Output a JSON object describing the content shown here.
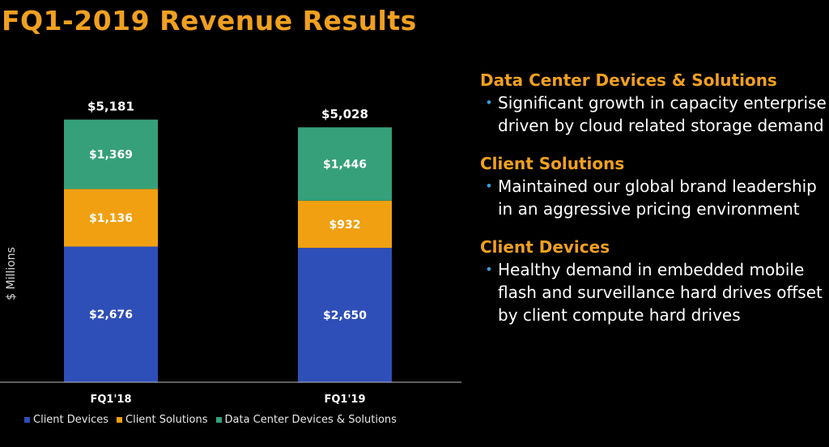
{
  "title": "FQ1-2019 Revenue Results",
  "chart_data": {
    "type": "bar",
    "stacked": true,
    "categories": [
      "FQ1'18",
      "FQ1'19"
    ],
    "ylabel": "$ Millions",
    "totals": [
      5181,
      5028
    ],
    "total_labels": [
      "$5,181",
      "$5,028"
    ],
    "series": [
      {
        "name": "Client Devices",
        "values": [
          2676,
          2650
        ],
        "labels": [
          "$2,676",
          "$2,650"
        ],
        "color": "#2f4fb8"
      },
      {
        "name": "Client Solutions",
        "values": [
          1136,
          932
        ],
        "labels": [
          "$1,136",
          "$932"
        ],
        "color": "#f0a010"
      },
      {
        "name": "Data Center Devices & Solutions",
        "values": [
          1369,
          1446
        ],
        "labels": [
          "$1,369",
          "$1,446"
        ],
        "color": "#35a07a"
      }
    ],
    "legend_position": "bottom",
    "grid": false
  },
  "commentary": [
    {
      "heading": "Data Center Devices & Solutions",
      "bullet": "Significant growth in capacity enterprise driven by cloud related storage demand"
    },
    {
      "heading": "Client Solutions",
      "bullet": "Maintained our global brand leadership in an aggressive pricing environment"
    },
    {
      "heading": "Client Devices",
      "bullet": "Healthy demand in embedded mobile flash and surveillance hard drives offset by client compute hard drives"
    }
  ],
  "colors": {
    "accent": "#f0a020",
    "bullet": "#3a9dd6",
    "background": "#000000"
  },
  "bullet_glyph": "•"
}
